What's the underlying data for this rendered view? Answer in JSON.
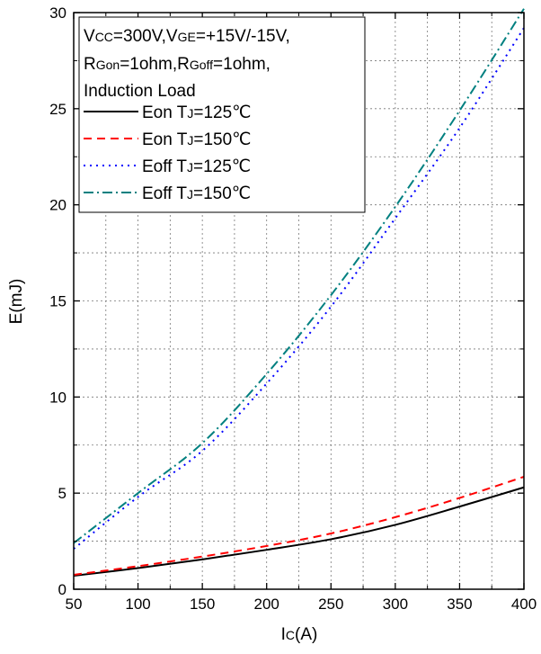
{
  "chart_data": {
    "type": "line",
    "xlabel_main": "I",
    "xlabel_sub": "C",
    "xlabel_unit": "(A)",
    "ylabel": "E(mJ)",
    "xlim": [
      50,
      400
    ],
    "ylim": [
      0,
      30
    ],
    "x_ticks": [
      "50",
      "100",
      "150",
      "200",
      "250",
      "300",
      "350",
      "400"
    ],
    "y_ticks": [
      "0",
      "5",
      "10",
      "15",
      "20",
      "25",
      "30"
    ],
    "grid": true,
    "legend_position": "top-left",
    "conditions": {
      "line1": {
        "v1": "V",
        "s1": "CC",
        "t1": "=300V,V",
        "s2": "GE",
        "t2": "=+15V/-15V,"
      },
      "line2": {
        "t1": "R",
        "s1": "Gon",
        "t2": "=1ohm,R",
        "s2": "Goff",
        "t3": "=1ohm,"
      },
      "line3": "Induction Load"
    },
    "series": [
      {
        "name_pre": "Eon T",
        "name_sub": "J",
        "name_post": "=125℃",
        "color": "#000000",
        "dash": "",
        "width": 2,
        "points": [
          [
            50,
            0.7
          ],
          [
            100,
            1.1
          ],
          [
            150,
            1.55
          ],
          [
            200,
            2.05
          ],
          [
            250,
            2.6
          ],
          [
            300,
            3.35
          ],
          [
            350,
            4.3
          ],
          [
            400,
            5.3
          ]
        ]
      },
      {
        "name_pre": "Eon T",
        "name_sub": "J",
        "name_post": "=150℃",
        "color": "#ff0000",
        "dash": "9,6",
        "width": 2,
        "points": [
          [
            50,
            0.75
          ],
          [
            100,
            1.2
          ],
          [
            150,
            1.7
          ],
          [
            200,
            2.25
          ],
          [
            250,
            2.9
          ],
          [
            300,
            3.75
          ],
          [
            350,
            4.75
          ],
          [
            400,
            5.85
          ]
        ]
      },
      {
        "name_pre": "Eoff T",
        "name_sub": "J",
        "name_post": "=125℃",
        "color": "#0000ff",
        "dash": "2,5",
        "width": 2,
        "points": [
          [
            50,
            2.1
          ],
          [
            100,
            4.8
          ],
          [
            150,
            7.2
          ],
          [
            200,
            10.7
          ],
          [
            250,
            14.7
          ],
          [
            300,
            19.3
          ],
          [
            350,
            24.0
          ],
          [
            400,
            29.2
          ]
        ]
      },
      {
        "name_pre": "Eoff T",
        "name_sub": "J",
        "name_post": "=150℃",
        "color": "#008080",
        "dash": "11,4,2,4",
        "width": 2,
        "points": [
          [
            50,
            2.4
          ],
          [
            100,
            5.0
          ],
          [
            150,
            7.6
          ],
          [
            200,
            11.2
          ],
          [
            250,
            15.3
          ],
          [
            300,
            19.9
          ],
          [
            350,
            24.9
          ],
          [
            400,
            30.2
          ]
        ]
      }
    ]
  }
}
